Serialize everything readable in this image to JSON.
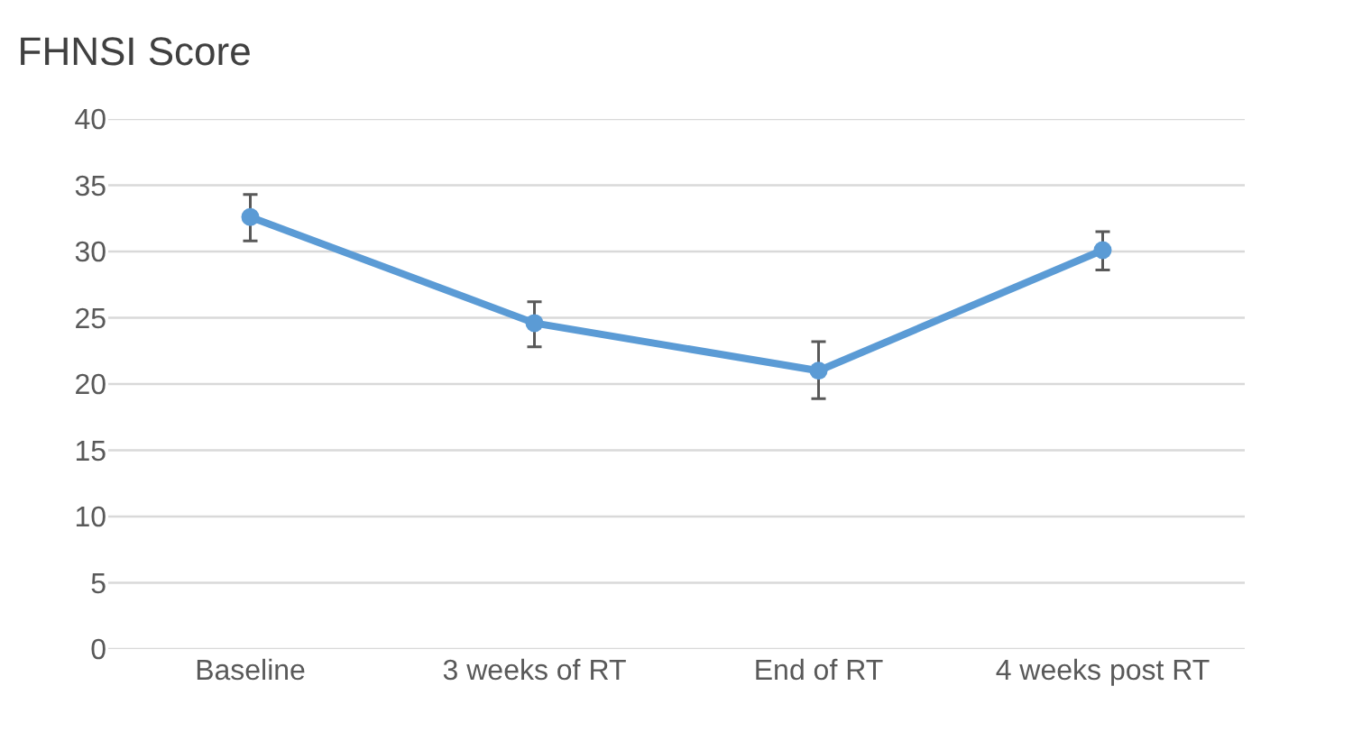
{
  "chart_data": {
    "type": "line",
    "title": "FHNSI Score",
    "categories": [
      "Baseline",
      "3 weeks of RT",
      "End of RT",
      "4 weeks post RT"
    ],
    "series": [
      {
        "color": "#5b9bd5",
        "values": [
          32.6,
          24.6,
          21.0,
          30.1
        ],
        "errors": [
          [
            30.8,
            34.3
          ],
          [
            22.8,
            26.2
          ],
          [
            18.9,
            23.2
          ],
          [
            28.6,
            31.5
          ]
        ]
      }
    ],
    "ylim": [
      0,
      40
    ],
    "yticks": [
      0,
      5,
      10,
      15,
      20,
      25,
      30,
      35,
      40
    ],
    "grid": "y",
    "marker": "circle",
    "line_style": "solid"
  }
}
